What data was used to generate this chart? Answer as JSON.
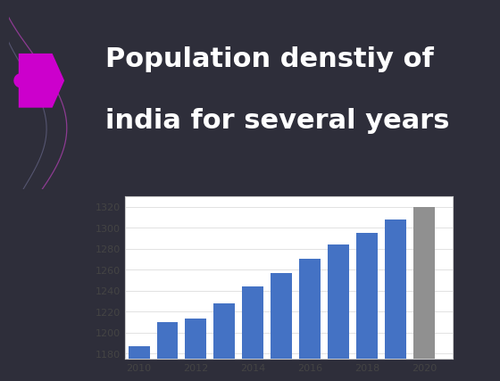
{
  "years": [
    2010,
    2011,
    2012,
    2013,
    2014,
    2015,
    2016,
    2017,
    2018,
    2019,
    2020
  ],
  "values": [
    1187,
    1210,
    1213,
    1228,
    1244,
    1257,
    1270,
    1284,
    1295,
    1308,
    1320
  ],
  "bar_colors": [
    "#4472c4",
    "#4472c4",
    "#4472c4",
    "#4472c4",
    "#4472c4",
    "#4472c4",
    "#4472c4",
    "#4472c4",
    "#4472c4",
    "#4472c4",
    "#909090"
  ],
  "ylim": [
    1175,
    1330
  ],
  "yticks": [
    1180,
    1200,
    1220,
    1240,
    1260,
    1280,
    1300,
    1320
  ],
  "xticks": [
    2010,
    2012,
    2014,
    2016,
    2018,
    2020
  ],
  "title_line1": "Population denstiy of",
  "title_line2": "india for several years",
  "bg_slide": "#2e2e3a",
  "bg_chart": "#ffffff",
  "title_color": "#ffffff",
  "title_fontsize": 22,
  "arrow_color": "#cc00cc",
  "chart_border_color": "#cccccc",
  "grid_color": "#dddddd",
  "tick_label_color": "#444444",
  "tick_fontsize": 8
}
